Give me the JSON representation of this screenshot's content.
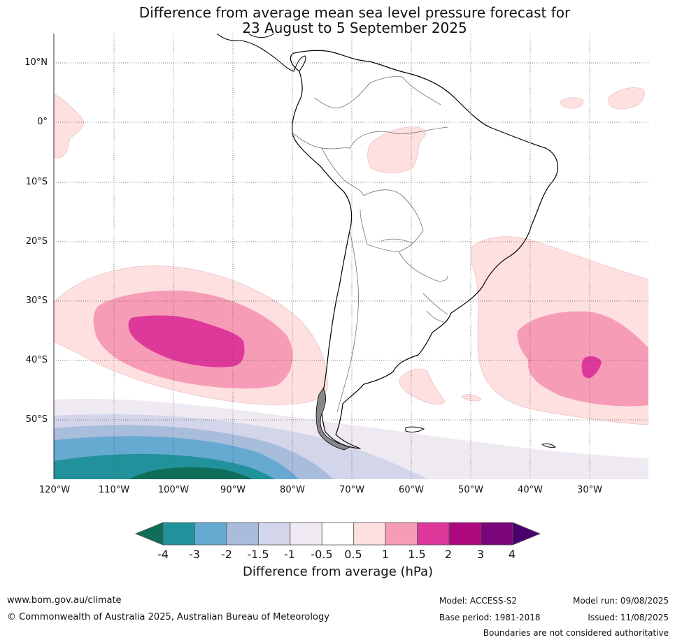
{
  "title": {
    "line1": "Difference from average mean sea level pressure forecast for",
    "line2": "23 August to 5 September 2025"
  },
  "map": {
    "region": "South America and surrounding oceans",
    "lat_labels": [
      "10°N",
      "0°",
      "10°S",
      "20°S",
      "30°S",
      "40°S",
      "50°S"
    ],
    "lon_labels": [
      "120°W",
      "110°W",
      "100°W",
      "90°W",
      "80°W",
      "70°W",
      "60°W",
      "50°W",
      "40°W",
      "30°W"
    ],
    "gridlines": true
  },
  "colorbar": {
    "label": "Difference from average (hPa)",
    "ticks": [
      "-4",
      "-3",
      "-2",
      "-1.5",
      "-1",
      "-0.5",
      "0.5",
      "1",
      "1.5",
      "2",
      "3",
      "4"
    ],
    "colors": [
      "#0e6e5a",
      "#21929c",
      "#66a9d1",
      "#a8bcdc",
      "#d3d5ea",
      "#efeaf2",
      "#ffffff",
      "#fde0df",
      "#f79cb7",
      "#de389b",
      "#ad0a80",
      "#7b0679",
      "#4b006c"
    ]
  },
  "footer": {
    "website": "www.bom.gov.au/climate",
    "copyright": "© Commonwealth of Australia 2025, Australian Bureau of Meteorology",
    "model": "Model: ACCESS-S2",
    "base_period": "Base period: 1981-2018",
    "model_run": "Model run: 09/08/2025",
    "issued": "Issued: 11/08/2025",
    "disclaimer": "Boundaries are not considered authoritative"
  }
}
